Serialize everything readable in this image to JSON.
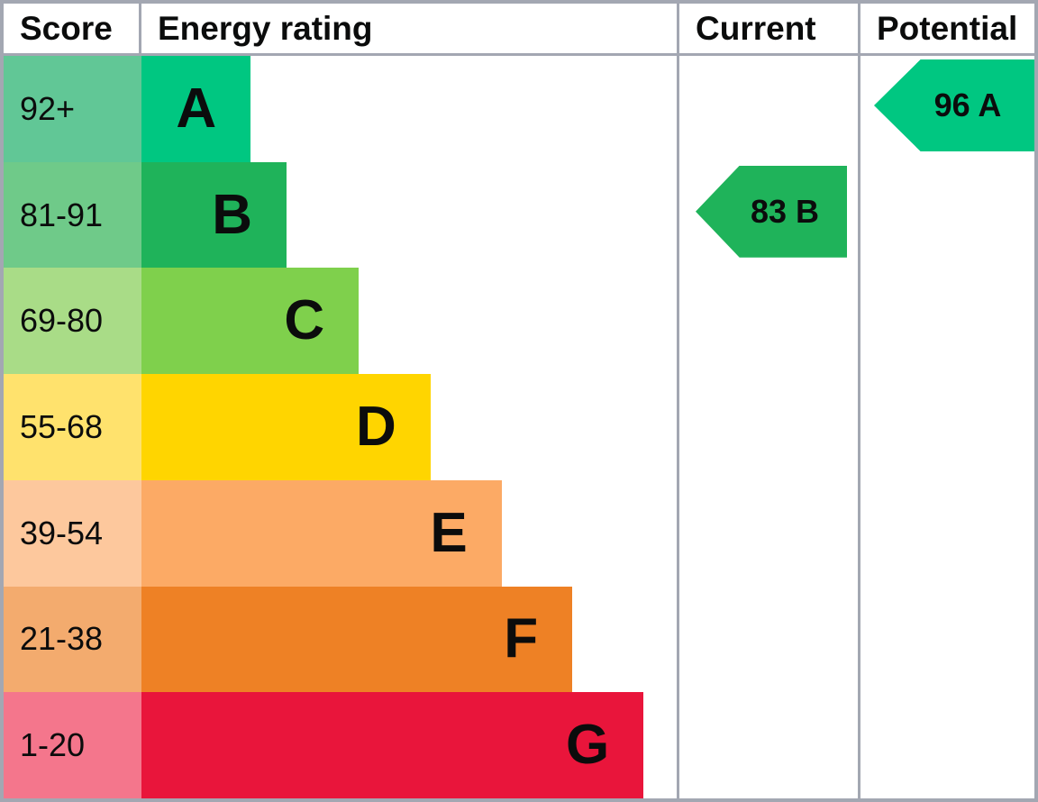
{
  "header": {
    "score": "Score",
    "energy_rating": "Energy rating",
    "current": "Current",
    "potential": "Potential"
  },
  "colors": {
    "border": "#a3a7b2",
    "background": "#ffffff",
    "text": "#0b0c0c"
  },
  "chart_data": {
    "type": "bar",
    "subtype": "epc-energy-efficiency-rating",
    "orientation": "horizontal",
    "columns": [
      "Score",
      "Energy rating",
      "Current",
      "Potential"
    ],
    "bands": [
      {
        "grade": "A",
        "score_range": "92+",
        "bar_width": "20.4%",
        "bar_color": "#00c781",
        "score_cell_color": "#61c796"
      },
      {
        "grade": "B",
        "score_range": "81-91",
        "bar_width": "27.1%",
        "bar_color": "#1fb35a",
        "score_cell_color": "#6fca89"
      },
      {
        "grade": "C",
        "score_range": "69-80",
        "bar_width": "40.6%",
        "bar_color": "#7fd04c",
        "score_cell_color": "#a9dc87"
      },
      {
        "grade": "D",
        "score_range": "55-68",
        "bar_width": "54.0%",
        "bar_color": "#ffd500",
        "score_cell_color": "#ffe26d"
      },
      {
        "grade": "E",
        "score_range": "39-54",
        "bar_width": "67.3%",
        "bar_color": "#fcaa65",
        "score_cell_color": "#fdc89d"
      },
      {
        "grade": "F",
        "score_range": "21-38",
        "bar_width": "80.5%",
        "bar_color": "#ee8125",
        "score_cell_color": "#f3ab6e"
      },
      {
        "grade": "G",
        "score_range": "1-20",
        "bar_width": "93.8%",
        "bar_color": "#e9153b",
        "score_cell_color": "#f4768c"
      }
    ],
    "current": {
      "value": 83,
      "grade": "B",
      "label": "83 B",
      "color": "#1fb35a",
      "row_grade": "B"
    },
    "potential": {
      "value": 96,
      "grade": "A",
      "label": "96 A",
      "color": "#00c781",
      "row_grade": "A"
    }
  }
}
